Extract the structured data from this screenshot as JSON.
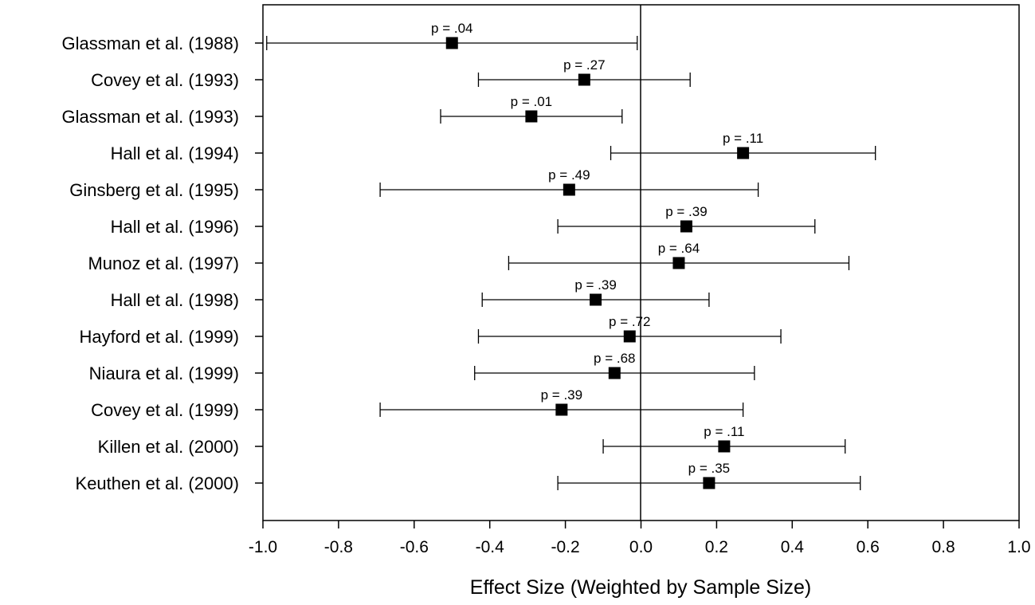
{
  "chart_data": {
    "type": "scatter",
    "subtype": "forest-plot",
    "title": "",
    "xlabel": "Effect Size (Weighted by Sample Size)",
    "ylabel": "",
    "xlim": [
      -1.0,
      1.0
    ],
    "xticks": [
      "-1.0",
      "-0.8",
      "-0.6",
      "-0.4",
      "-0.2",
      "0.0",
      "0.2",
      "0.4",
      "0.6",
      "0.8",
      "1.0"
    ],
    "reference_line": 0.0,
    "grid": false,
    "marker": "square",
    "color": "#000000",
    "studies": [
      {
        "label": "Glassman et al. (1988)",
        "effect": -0.5,
        "ci": [
          -0.99,
          -0.01
        ],
        "p": "p = .04"
      },
      {
        "label": "Covey et al. (1993)",
        "effect": -0.15,
        "ci": [
          -0.43,
          0.13
        ],
        "p": "p = .27"
      },
      {
        "label": "Glassman et al. (1993)",
        "effect": -0.29,
        "ci": [
          -0.53,
          -0.05
        ],
        "p": "p = .01"
      },
      {
        "label": "Hall et al. (1994)",
        "effect": 0.27,
        "ci": [
          -0.08,
          0.62
        ],
        "p": "p = .11"
      },
      {
        "label": "Ginsberg et al. (1995)",
        "effect": -0.19,
        "ci": [
          -0.69,
          0.31
        ],
        "p": "p = .49"
      },
      {
        "label": "Hall et al. (1996)",
        "effect": 0.12,
        "ci": [
          -0.22,
          0.46
        ],
        "p": "p = .39"
      },
      {
        "label": "Munoz et al. (1997)",
        "effect": 0.1,
        "ci": [
          -0.35,
          0.55
        ],
        "p": "p = .64"
      },
      {
        "label": "Hall et al. (1998)",
        "effect": -0.12,
        "ci": [
          -0.42,
          0.18
        ],
        "p": "p = .39"
      },
      {
        "label": "Hayford et al. (1999)",
        "effect": -0.03,
        "ci": [
          -0.43,
          0.37
        ],
        "p": "p = .72"
      },
      {
        "label": "Niaura et al. (1999)",
        "effect": -0.07,
        "ci": [
          -0.44,
          0.3
        ],
        "p": "p = .68"
      },
      {
        "label": "Covey et al. (1999)",
        "effect": -0.21,
        "ci": [
          -0.69,
          0.27
        ],
        "p": "p = .39"
      },
      {
        "label": "Killen et al. (2000)",
        "effect": 0.22,
        "ci": [
          -0.1,
          0.54
        ],
        "p": "p = .11"
      },
      {
        "label": "Keuthen et al. (2000)",
        "effect": 0.18,
        "ci": [
          -0.22,
          0.58
        ],
        "p": "p = .35"
      }
    ]
  }
}
